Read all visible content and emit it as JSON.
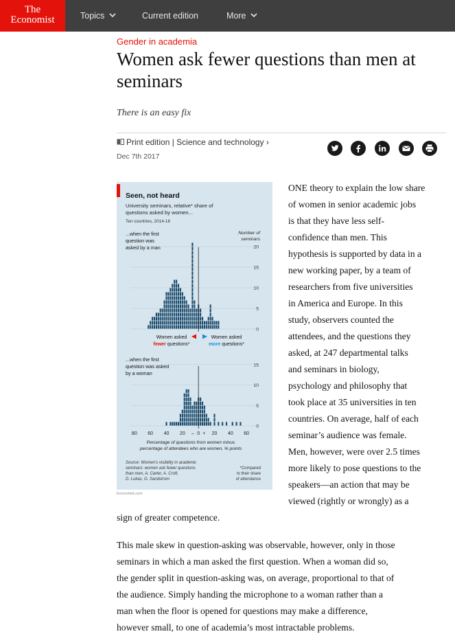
{
  "nav": {
    "logo_line1": "The",
    "logo_line2": "Economist",
    "topics": "Topics",
    "current_edition": "Current edition",
    "more": "More"
  },
  "article": {
    "kicker": "Gender in academia",
    "headline": "Women ask fewer questions than men at seminars",
    "rubric": "There is an easy fix",
    "section": "Print edition | Science and technology ›",
    "date": "Dec 7th 2017",
    "share_icons": [
      "twitter-icon",
      "facebook-icon",
      "linkedin-icon",
      "email-icon",
      "print-icon"
    ],
    "col_lines": [
      "ONE theory to explain the low share",
      "of women in senior academic jobs",
      "is that they have less self-",
      "confidence than men. This",
      "hypothesis is supported by data in a",
      "new working paper, by a team of",
      "researchers from five universities",
      "in America and Europe. In this",
      "study, observers counted the",
      "attendees, and the questions they",
      "asked, at 247 departmental talks",
      "and seminars in biology,",
      "psychology and philosophy that",
      "took place at 35 universities in ten",
      "countries. On average, half of each",
      "seminar’s audience was female.",
      "Men, however, were over 2.5 times",
      "more likely to pose questions to the",
      "speakers—an action that may be",
      "viewed (rightly or wrongly) as a"
    ],
    "p1_end": "sign of greater competence.",
    "p2_lines": [
      "This male skew in question-asking was observable, however, only in those",
      "seminars in which a man asked the first question. When a woman did so,",
      "the gender split in question-asking was, on average, proportional to that of",
      "the audience. Simply handing the microphone to a woman rather than a",
      "man when the floor is opened for questions may make a difference,",
      "however small, to one of academia’s most intractable problems."
    ]
  },
  "chart_data": {
    "type": "bar",
    "title": "Seen, not heard",
    "subtitle": "University seminars, relative* share of questions asked by women...",
    "subtitle_line1": "University seminars, relative* share of",
    "subtitle_line2": "questions asked by women...",
    "note": "Ten countries, 2014-16",
    "ylabel_line1": "Number of",
    "ylabel_line2": "seminars",
    "xlabel_line1": "Percentage of questions from women minus",
    "xlabel_line2": "percentage of attendees who are women, % points",
    "x_ticks": [
      "80",
      "60",
      "40",
      "20",
      "0",
      "20",
      "40",
      "60"
    ],
    "x_tick_values": [
      -80,
      -60,
      -40,
      -20,
      0,
      20,
      40,
      60
    ],
    "x_minus": "–",
    "x_plus": "+",
    "xlim": [
      -85,
      65
    ],
    "bin_width": 2.5,
    "fewer_label_line1": "Women asked",
    "fewer_label_strong": "fewer",
    "fewer_label_rest": "questions*",
    "more_label_line1": "Women asked",
    "more_label_strong": "more",
    "more_label_rest": "questions*",
    "source_line1": "Source: Women’s visibility in academic",
    "source_line2": "seminars: women ask fewer questions",
    "source_line3": "than men, A. Carter, A. Croft,",
    "source_line4": "D. Lukas, G. Sandstrom",
    "footnote_line1": "*Compared",
    "footnote_line2": "to their share",
    "footnote_line3": "of attendance",
    "credit": "Economist.com",
    "colors": {
      "bars": "#1a4a6b",
      "background": "#d7e5ee",
      "red": "#e3120b",
      "blue": "#1c8ed6"
    },
    "panels": [
      {
        "label_line1": "...when the first",
        "label_line2": "question was",
        "label_line3": "asked by a man",
        "y_ticks": [
          0,
          5,
          10,
          15,
          20
        ],
        "ylim": [
          0,
          21
        ],
        "x": [
          -62.5,
          -60,
          -57.5,
          -55,
          -52.5,
          -50,
          -47.5,
          -45,
          -42.5,
          -40,
          -37.5,
          -35,
          -32.5,
          -30,
          -27.5,
          -25,
          -22.5,
          -20,
          -17.5,
          -15,
          -12.5,
          -10,
          -7.5,
          -5,
          -2.5,
          0,
          2.5,
          5,
          7.5,
          10,
          12.5,
          15,
          17.5,
          20,
          22.5,
          25
        ],
        "values": [
          1,
          2,
          3,
          3,
          4,
          4,
          5,
          5,
          7,
          9,
          9,
          10,
          11,
          12,
          12,
          11,
          10,
          9,
          8,
          7,
          6,
          5,
          21,
          7,
          5,
          6,
          5,
          3,
          2,
          2,
          3,
          6,
          3,
          2,
          2,
          2
        ]
      },
      {
        "label_line1": "...when the first",
        "label_line2": "question was asked",
        "label_line3": "by a woman",
        "y_ticks": [
          0,
          5,
          10,
          15
        ],
        "ylim": [
          0,
          19
        ],
        "x": [
          -40,
          -37.5,
          -35,
          -32.5,
          -30,
          -27.5,
          -25,
          -22.5,
          -20,
          -17.5,
          -15,
          -12.5,
          -10,
          -7.5,
          -5,
          -2.5,
          0,
          2.5,
          5,
          7.5,
          10,
          12.5,
          15,
          20,
          25,
          30,
          35,
          42.5,
          47.5,
          52.5
        ],
        "values": [
          1,
          0,
          1,
          1,
          1,
          1,
          1,
          3,
          4,
          8,
          9,
          9,
          7,
          5,
          6,
          6,
          7,
          7,
          6,
          5,
          3,
          2,
          1,
          3,
          1,
          1,
          1,
          1,
          1,
          1
        ]
      }
    ]
  }
}
